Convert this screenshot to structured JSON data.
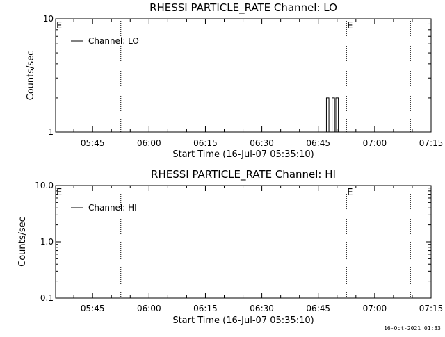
{
  "footer_timestamp": "16-Oct-2021 01:33",
  "chart_data": [
    {
      "type": "line",
      "title": "RHESSI PARTICLE_RATE Channel: LO",
      "xlabel": "Start Time (16-Jul-07 05:35:10)",
      "ylabel": "Counts/sec",
      "yscale": "log",
      "ylim": [
        1,
        10
      ],
      "yticks": [
        {
          "value": 1,
          "label": "1"
        },
        {
          "value": 10,
          "label": "10"
        }
      ],
      "xlim": [
        "05:35:10",
        "07:15:00"
      ],
      "xticks": [
        "05:45",
        "06:00",
        "06:15",
        "06:30",
        "06:45",
        "07:00",
        "07:15"
      ],
      "grid": false,
      "legend": {
        "position": "top-left",
        "entries": [
          "Channel: LO"
        ]
      },
      "event_markers": [
        {
          "time": "05:35:10",
          "label": "E"
        },
        {
          "time": "05:52:30",
          "label": ""
        },
        {
          "time": "06:52:30",
          "label": "E"
        },
        {
          "time": "07:09:30",
          "label": ""
        }
      ],
      "series": [
        {
          "name": "Channel: LO",
          "x": [
            "06:47:00",
            "06:47:30",
            "06:48:00",
            "06:48:30",
            "06:49:00",
            "06:49:30",
            "06:50:00",
            "06:50:30"
          ],
          "y": [
            1,
            2,
            1,
            1,
            2,
            1,
            2,
            1
          ]
        }
      ]
    },
    {
      "type": "line",
      "title": "RHESSI PARTICLE_RATE Channel: HI",
      "xlabel": "Start Time (16-Jul-07 05:35:10)",
      "ylabel": "Counts/sec",
      "yscale": "log",
      "ylim": [
        0.1,
        10
      ],
      "yticks": [
        {
          "value": 0.1,
          "label": "0.1"
        },
        {
          "value": 1,
          "label": "1.0"
        },
        {
          "value": 10,
          "label": "10.0"
        }
      ],
      "xlim": [
        "05:35:10",
        "07:15:00"
      ],
      "xticks": [
        "05:45",
        "06:00",
        "06:15",
        "06:30",
        "06:45",
        "07:00",
        "07:15"
      ],
      "grid": false,
      "legend": {
        "position": "top-left",
        "entries": [
          "Channel: HI"
        ]
      },
      "event_markers": [
        {
          "time": "05:35:10",
          "label": "E"
        },
        {
          "time": "05:52:30",
          "label": ""
        },
        {
          "time": "06:52:30",
          "label": "E"
        },
        {
          "time": "07:09:30",
          "label": ""
        }
      ],
      "series": [
        {
          "name": "Channel: HI",
          "x": [],
          "y": []
        }
      ]
    }
  ]
}
